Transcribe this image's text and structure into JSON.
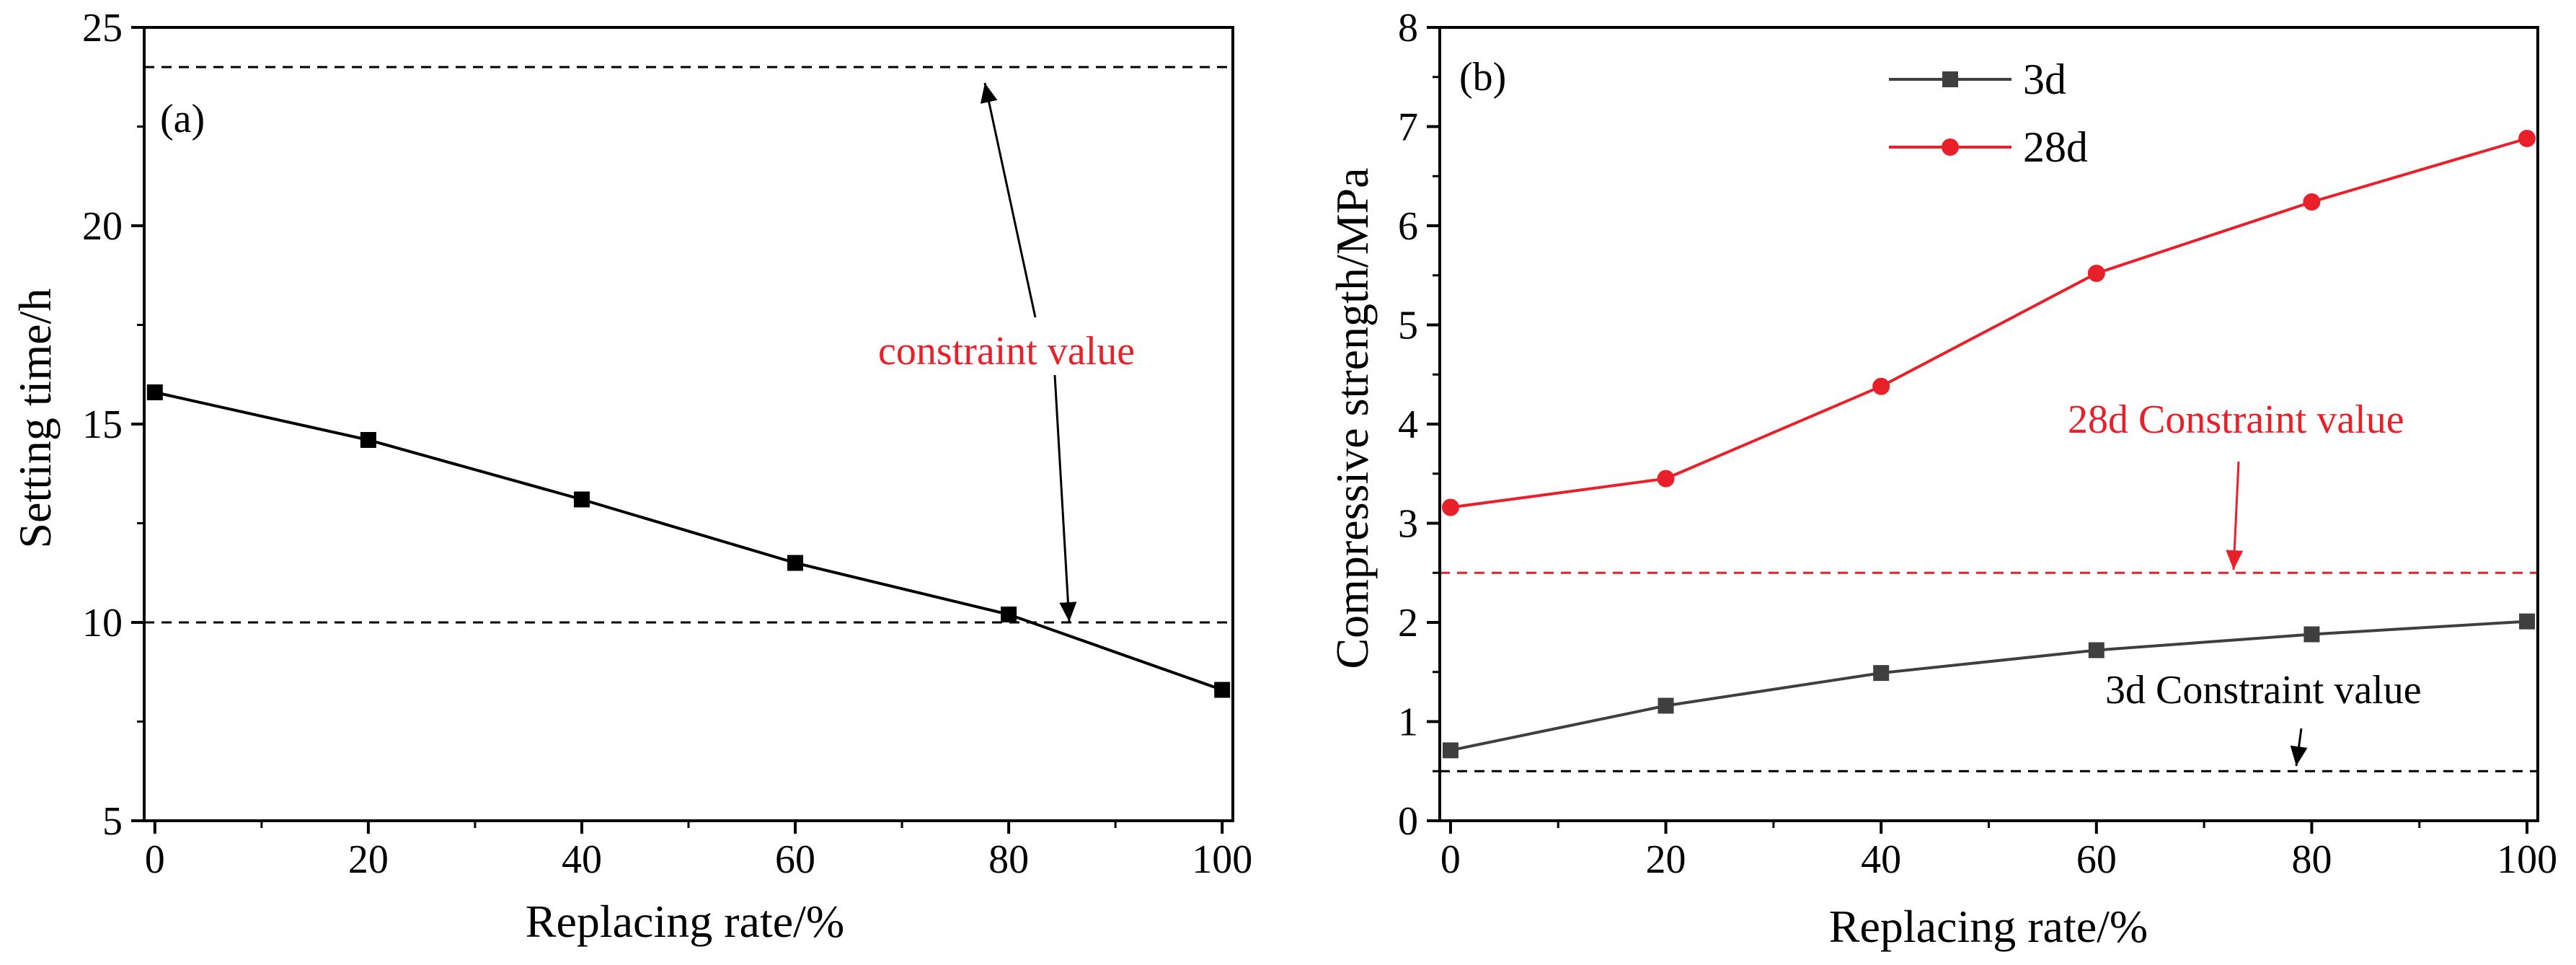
{
  "chart_data": [
    {
      "type": "line",
      "panel_label": "(a)",
      "xlabel": "Replacing rate/%",
      "ylabel": "Setting time/h",
      "xlim": [
        -1,
        101
      ],
      "ylim": [
        5,
        25
      ],
      "xticks": [
        0,
        20,
        40,
        60,
        80,
        100
      ],
      "yticks": [
        5,
        10,
        15,
        20,
        25
      ],
      "grid": false,
      "series": [
        {
          "x": [
            0,
            20,
            40,
            60,
            80,
            100
          ],
          "values": [
            15.8,
            14.6,
            13.1,
            11.5,
            10.2,
            8.3
          ],
          "color": "#000000",
          "marker": "square"
        }
      ],
      "reference_lines": [
        {
          "y": 24,
          "color": "#000000",
          "style": "dashed"
        },
        {
          "y": 10,
          "color": "#000000",
          "style": "dashed"
        }
      ],
      "annotations": [
        {
          "text": "constraint value",
          "color": "#e8202a"
        }
      ]
    },
    {
      "type": "line",
      "panel_label": "(b)",
      "xlabel": "Replacing rate/%",
      "ylabel": "Compressive strength/MPa",
      "xlim": [
        -1,
        101
      ],
      "ylim": [
        0,
        8
      ],
      "xticks": [
        0,
        20,
        40,
        60,
        80,
        100
      ],
      "yticks": [
        0,
        1,
        2,
        3,
        4,
        5,
        6,
        7,
        8
      ],
      "grid": false,
      "legend": "top-left",
      "series": [
        {
          "name": "3d",
          "x": [
            0,
            20,
            40,
            60,
            80,
            100
          ],
          "values": [
            0.71,
            1.16,
            1.49,
            1.72,
            1.88,
            2.01
          ],
          "color": "#3f3f3f",
          "marker": "square"
        },
        {
          "name": "28d",
          "x": [
            0,
            20,
            40,
            60,
            80,
            100
          ],
          "values": [
            3.16,
            3.45,
            4.38,
            5.52,
            6.24,
            6.88
          ],
          "color": "#e8202a",
          "marker": "circle"
        }
      ],
      "reference_lines": [
        {
          "y": 2.5,
          "color": "#e8202a",
          "style": "dashed"
        },
        {
          "y": 0.5,
          "color": "#000000",
          "style": "dashed"
        }
      ],
      "annotations": [
        {
          "text": "28d Constraint value",
          "color": "#e8202a"
        },
        {
          "text": "3d Constraint value",
          "color": "#000000"
        }
      ]
    }
  ]
}
